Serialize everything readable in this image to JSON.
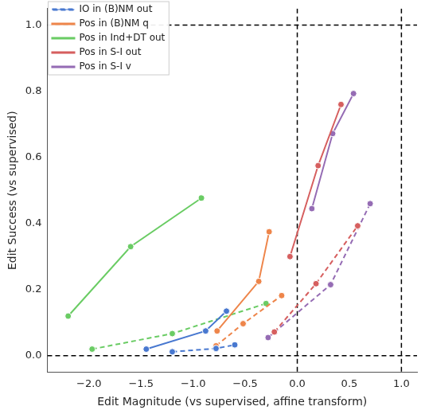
{
  "chart_data": {
    "type": "line",
    "x_label": "Edit Magnitude (vs supervised, affine transform)",
    "y_label": "Edit Success (vs supervised)",
    "series": [
      {
        "name": "IO in (B)NM out",
        "color": "#4878d0",
        "line_style": "dashed",
        "marker": "circle",
        "x": [
          -1.2,
          -0.78,
          -0.6
        ],
        "values": [
          0.012,
          0.022,
          0.033
        ]
      },
      {
        "name": "IO in (B)NM out",
        "color": "#4878d0",
        "line_style": "solid",
        "marker": "circle",
        "x": [
          -1.45,
          -0.88,
          -0.68
        ],
        "values": [
          0.02,
          0.075,
          0.135
        ]
      },
      {
        "name": "Pos in (B)NM q",
        "color": "#ee854a",
        "line_style": "solid",
        "marker": "circle",
        "x": [
          -0.77,
          -0.37,
          -0.27
        ],
        "values": [
          0.075,
          0.225,
          0.375
        ]
      },
      {
        "name": "Pos in (B)NM q",
        "color": "#ee854a",
        "line_style": "dashed",
        "marker": "circle",
        "x": [
          -0.78,
          -0.52,
          -0.15
        ],
        "values": [
          0.03,
          0.097,
          0.182
        ]
      },
      {
        "name": "Pos in Ind+DT out",
        "color": "#6acc64",
        "line_style": "solid",
        "marker": "circle",
        "x": [
          -2.2,
          -1.6,
          -0.92
        ],
        "values": [
          0.12,
          0.33,
          0.477
        ]
      },
      {
        "name": "Pos in Ind+DT out",
        "color": "#6acc64",
        "line_style": "dashed",
        "marker": "circle",
        "x": [
          -1.97,
          -1.2,
          -0.3
        ],
        "values": [
          0.02,
          0.067,
          0.158
        ]
      },
      {
        "name": "Pos in S-I out",
        "color": "#d65f5f",
        "line_style": "solid",
        "marker": "circle",
        "x": [
          -0.07,
          0.2,
          0.42
        ],
        "values": [
          0.3,
          0.575,
          0.76
        ]
      },
      {
        "name": "Pos in S-I out",
        "color": "#d65f5f",
        "line_style": "dashed",
        "marker": "circle",
        "x": [
          -0.22,
          0.18,
          0.58
        ],
        "values": [
          0.072,
          0.218,
          0.393
        ]
      },
      {
        "name": "Pos in S-I v",
        "color": "#956cb4",
        "line_style": "solid",
        "marker": "circle",
        "x": [
          0.14,
          0.34,
          0.54
        ],
        "values": [
          0.445,
          0.672,
          0.793
        ]
      },
      {
        "name": "Pos in S-I v",
        "color": "#956cb4",
        "line_style": "dashed",
        "marker": "circle",
        "x": [
          -0.28,
          0.32,
          0.7
        ],
        "values": [
          0.055,
          0.215,
          0.46
        ]
      }
    ],
    "xlim": [
      -2.4,
      1.15
    ],
    "xticks": [
      {
        "value": -2.0,
        "label": "−2.0"
      },
      {
        "value": -1.5,
        "label": "−1.5"
      },
      {
        "value": -1.0,
        "label": "−1.0"
      },
      {
        "value": -0.5,
        "label": "−0.5"
      },
      {
        "value": 0.0,
        "label": "0.0"
      },
      {
        "value": 0.5,
        "label": "0.5"
      },
      {
        "value": 1.0,
        "label": "1.0"
      }
    ],
    "ylim": [
      -0.05,
      1.05
    ],
    "yticks": [
      {
        "value": 0.0,
        "label": "0.0"
      },
      {
        "value": 0.2,
        "label": "0.2"
      },
      {
        "value": 0.4,
        "label": "0.4"
      },
      {
        "value": 0.6,
        "label": "0.6"
      },
      {
        "value": 0.8,
        "label": "0.8"
      },
      {
        "value": 1.0,
        "label": "1.0"
      }
    ],
    "reference_lines": {
      "x": [
        0,
        1
      ],
      "y": [
        0,
        1
      ]
    },
    "grid": false,
    "legend": "upper left"
  }
}
